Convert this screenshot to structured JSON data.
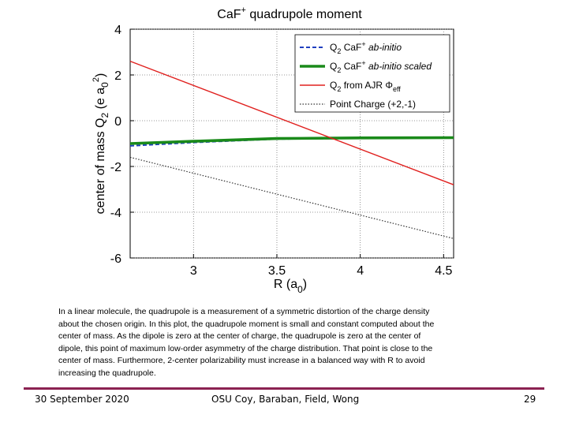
{
  "chart_data": {
    "type": "line",
    "title": "CaF+ quadrupole moment",
    "xlabel": "R (a0)",
    "ylabel": "center of mass Q2 (e a0^2)",
    "xlim": [
      2.62,
      4.56
    ],
    "ylim": [
      -6,
      4
    ],
    "xticks": [
      3,
      3.5,
      4,
      4.5
    ],
    "yticks": [
      4,
      2,
      0,
      -2,
      -4,
      -6
    ],
    "grid": "dotted",
    "legend_position": "top-right",
    "series": [
      {
        "name": "Q2 CaF+ ab-initio",
        "color": "#1f3fbf",
        "style": "dashed",
        "x": [
          2.62,
          3.0,
          3.5,
          4.0,
          4.56
        ],
        "y": [
          -1.1,
          -0.95,
          -0.8,
          -0.77,
          -0.75
        ]
      },
      {
        "name": "Q2 CaF+ ab-initio scaled",
        "color": "#1a8a1a",
        "style": "solid-thick",
        "x": [
          2.62,
          3.0,
          3.5,
          4.0,
          4.56
        ],
        "y": [
          -1.0,
          -0.9,
          -0.78,
          -0.75,
          -0.74
        ]
      },
      {
        "name": "Q2 from AJR Φeff",
        "color": "#e0201e",
        "style": "solid",
        "x": [
          2.62,
          4.56
        ],
        "y": [
          2.6,
          -2.8
        ]
      },
      {
        "name": "Point Charge (+2,-1)",
        "color": "#333333",
        "style": "dotted",
        "x": [
          2.62,
          4.56
        ],
        "y": [
          -1.6,
          -5.15
        ]
      }
    ]
  },
  "caption": [
    "In a linear molecule, the quadrupole is a measurement of a symmetric distortion of the charge density",
    "about the chosen origin.  In this plot, the quadrupole moment is small and constant computed about the",
    "center of mass. As the dipole is zero at the center of charge, the quadrupole is zero at the center of",
    "dipole, this point of maximum low-order asymmetry of the charge distribution. That point is close to the",
    "center of mass. Furthermore, 2-center polarizability must increase in a balanced way with R to avoid",
    "increasing the quadrupole."
  ],
  "footer": {
    "date": "30 September 2020",
    "authors": "OSU Coy, Baraban, Field, Wong",
    "page": "29",
    "rule_color": "#8b2252"
  }
}
